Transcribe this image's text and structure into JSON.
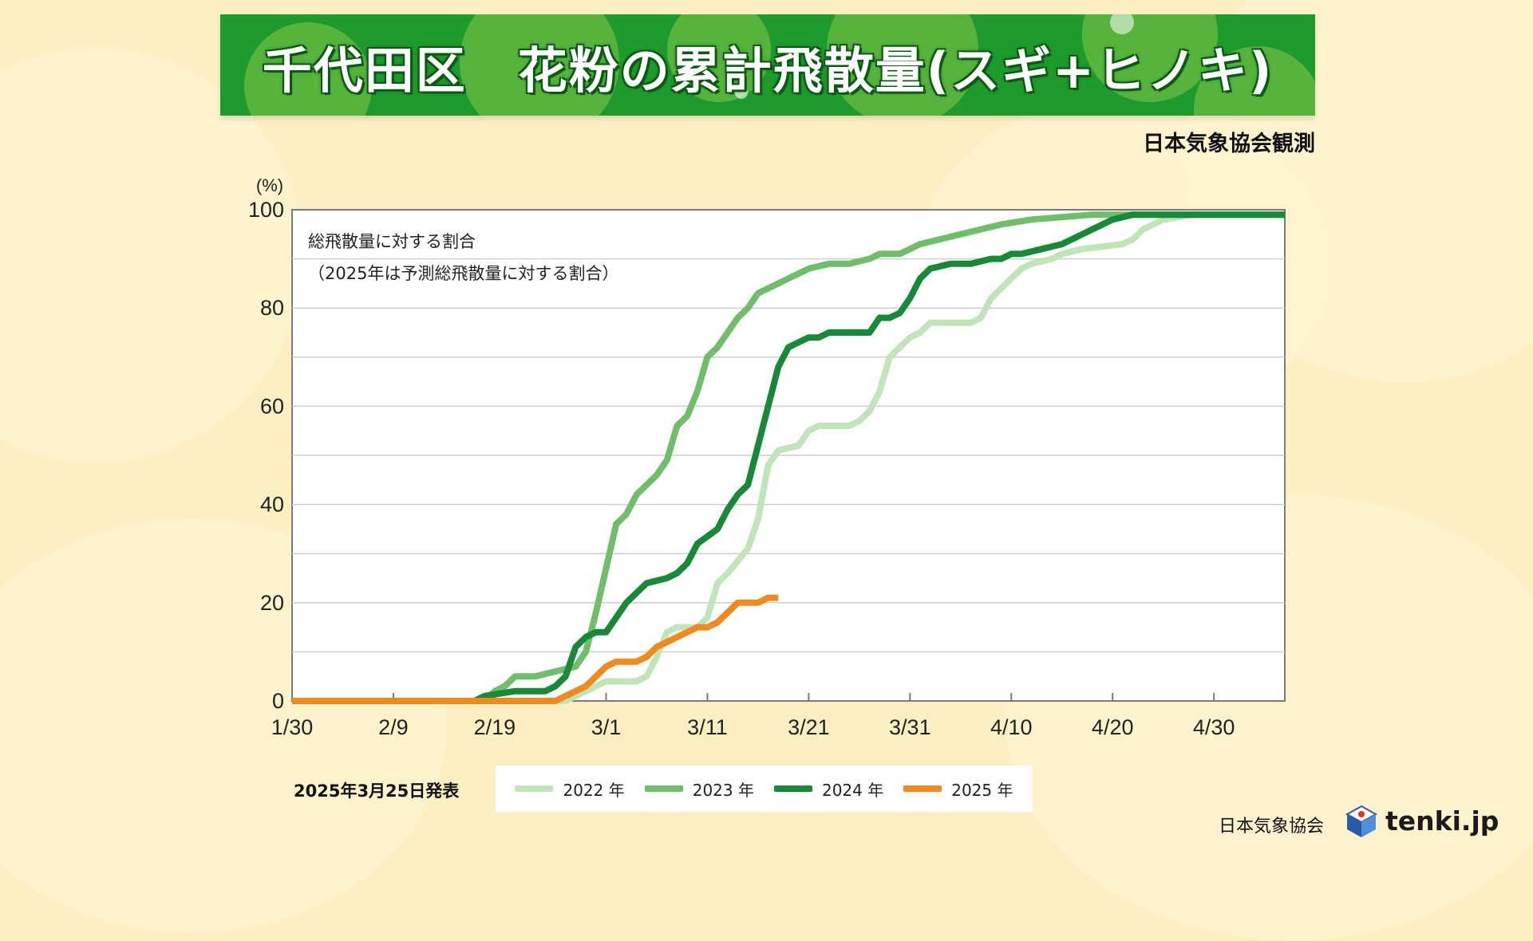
{
  "header": {
    "title": "千代田区　花粉の累計飛散量(スギ+ヒノキ)",
    "observer": "日本気象協会観測"
  },
  "chart_data": {
    "type": "line",
    "note_line1": "総飛散量に対する割合",
    "note_line2": "（2025年は予測総飛散量に対する割合）",
    "yunit": "(%)",
    "ylim": [
      0,
      100
    ],
    "yticks": [
      0,
      20,
      40,
      60,
      80,
      100
    ],
    "xlim": [
      "1/30",
      "5/7"
    ],
    "xticks": [
      "1/30",
      "2/9",
      "2/19",
      "3/1",
      "3/11",
      "3/21",
      "3/31",
      "4/10",
      "4/20",
      "4/30"
    ],
    "grid": true,
    "series": [
      {
        "name": "2022 年",
        "color": "#bfe5b9",
        "points": [
          [
            "1/30",
            0
          ],
          [
            "2/26",
            0
          ],
          [
            "2/28",
            2
          ],
          [
            "3/1",
            4
          ],
          [
            "3/4",
            4
          ],
          [
            "3/5",
            5
          ],
          [
            "3/6",
            9
          ],
          [
            "3/7",
            14
          ],
          [
            "3/8",
            15
          ],
          [
            "3/10",
            15
          ],
          [
            "3/11",
            17
          ],
          [
            "3/12",
            24
          ],
          [
            "3/13",
            26
          ],
          [
            "3/15",
            31
          ],
          [
            "3/16",
            37
          ],
          [
            "3/17",
            48
          ],
          [
            "3/18",
            51
          ],
          [
            "3/20",
            52
          ],
          [
            "3/21",
            55
          ],
          [
            "3/22",
            56
          ],
          [
            "3/25",
            56
          ],
          [
            "3/26",
            57
          ],
          [
            "3/27",
            59
          ],
          [
            "3/28",
            63
          ],
          [
            "3/29",
            70
          ],
          [
            "3/30",
            72
          ],
          [
            "3/31",
            74
          ],
          [
            "4/1",
            75
          ],
          [
            "4/2",
            77
          ],
          [
            "4/6",
            77
          ],
          [
            "4/7",
            78
          ],
          [
            "4/8",
            82
          ],
          [
            "4/9",
            84
          ],
          [
            "4/10",
            86
          ],
          [
            "4/11",
            88
          ],
          [
            "4/12",
            89
          ],
          [
            "4/14",
            90
          ],
          [
            "4/15",
            91
          ],
          [
            "4/17",
            92
          ],
          [
            "4/21",
            93
          ],
          [
            "4/22",
            94
          ],
          [
            "4/23",
            96
          ],
          [
            "4/25",
            98
          ],
          [
            "4/28",
            99
          ],
          [
            "5/7",
            99
          ]
        ]
      },
      {
        "name": "2023 年",
        "color": "#6ebe6a",
        "points": [
          [
            "1/30",
            0
          ],
          [
            "2/18",
            0
          ],
          [
            "2/19",
            2
          ],
          [
            "2/20",
            3
          ],
          [
            "2/21",
            5
          ],
          [
            "2/23",
            5
          ],
          [
            "2/25",
            6
          ],
          [
            "2/27",
            7
          ],
          [
            "2/28",
            10
          ],
          [
            "2/29",
            18
          ],
          [
            "3/1",
            27
          ],
          [
            "3/2",
            36
          ],
          [
            "3/3",
            38
          ],
          [
            "3/4",
            42
          ],
          [
            "3/5",
            44
          ],
          [
            "3/6",
            46
          ],
          [
            "3/7",
            49
          ],
          [
            "3/8",
            56
          ],
          [
            "3/9",
            58
          ],
          [
            "3/10",
            63
          ],
          [
            "3/11",
            70
          ],
          [
            "3/12",
            72
          ],
          [
            "3/13",
            75
          ],
          [
            "3/14",
            78
          ],
          [
            "3/15",
            80
          ],
          [
            "3/16",
            83
          ],
          [
            "3/17",
            84
          ],
          [
            "3/19",
            86
          ],
          [
            "3/20",
            87
          ],
          [
            "3/21",
            88
          ],
          [
            "3/23",
            89
          ],
          [
            "3/25",
            89
          ],
          [
            "3/27",
            90
          ],
          [
            "3/28",
            91
          ],
          [
            "3/30",
            91
          ],
          [
            "3/31",
            92
          ],
          [
            "4/1",
            93
          ],
          [
            "4/3",
            94
          ],
          [
            "4/5",
            95
          ],
          [
            "4/7",
            96
          ],
          [
            "4/9",
            97
          ],
          [
            "4/12",
            98
          ],
          [
            "4/18",
            99
          ],
          [
            "4/22",
            99
          ],
          [
            "5/7",
            99
          ]
        ]
      },
      {
        "name": "2024 年",
        "color": "#178a37",
        "points": [
          [
            "1/30",
            0
          ],
          [
            "2/17",
            0
          ],
          [
            "2/18",
            1
          ],
          [
            "2/21",
            2
          ],
          [
            "2/24",
            2
          ],
          [
            "2/25",
            3
          ],
          [
            "2/26",
            5
          ],
          [
            "2/27",
            11
          ],
          [
            "2/28",
            13
          ],
          [
            "2/29",
            14
          ],
          [
            "3/1",
            14
          ],
          [
            "3/2",
            17
          ],
          [
            "3/3",
            20
          ],
          [
            "3/4",
            22
          ],
          [
            "3/5",
            24
          ],
          [
            "3/7",
            25
          ],
          [
            "3/8",
            26
          ],
          [
            "3/9",
            28
          ],
          [
            "3/10",
            32
          ],
          [
            "3/12",
            35
          ],
          [
            "3/13",
            39
          ],
          [
            "3/14",
            42
          ],
          [
            "3/15",
            44
          ],
          [
            "3/16",
            52
          ],
          [
            "3/17",
            60
          ],
          [
            "3/18",
            68
          ],
          [
            "3/19",
            72
          ],
          [
            "3/20",
            73
          ],
          [
            "3/21",
            74
          ],
          [
            "3/22",
            74
          ],
          [
            "3/23",
            75
          ],
          [
            "3/27",
            75
          ],
          [
            "3/28",
            78
          ],
          [
            "3/29",
            78
          ],
          [
            "3/30",
            79
          ],
          [
            "3/31",
            82
          ],
          [
            "4/1",
            86
          ],
          [
            "4/2",
            88
          ],
          [
            "4/4",
            89
          ],
          [
            "4/6",
            89
          ],
          [
            "4/8",
            90
          ],
          [
            "4/9",
            90
          ],
          [
            "4/10",
            91
          ],
          [
            "4/11",
            91
          ],
          [
            "4/13",
            92
          ],
          [
            "4/15",
            93
          ],
          [
            "4/17",
            95
          ],
          [
            "4/18",
            96
          ],
          [
            "4/19",
            97
          ],
          [
            "4/20",
            98
          ],
          [
            "4/22",
            99
          ],
          [
            "5/7",
            99
          ]
        ]
      },
      {
        "name": "2025 年",
        "color": "#f08a1c",
        "points": [
          [
            "1/30",
            0
          ],
          [
            "2/25",
            0
          ],
          [
            "2/26",
            1
          ],
          [
            "2/27",
            2
          ],
          [
            "2/28",
            3
          ],
          [
            "2/29",
            5
          ],
          [
            "3/1",
            7
          ],
          [
            "3/2",
            8
          ],
          [
            "3/3",
            8
          ],
          [
            "3/4",
            8
          ],
          [
            "3/5",
            9
          ],
          [
            "3/6",
            11
          ],
          [
            "3/7",
            12
          ],
          [
            "3/8",
            13
          ],
          [
            "3/9",
            14
          ],
          [
            "3/10",
            15
          ],
          [
            "3/11",
            15
          ],
          [
            "3/12",
            16
          ],
          [
            "3/13",
            18
          ],
          [
            "3/14",
            20
          ],
          [
            "3/16",
            20
          ],
          [
            "3/17",
            21
          ],
          [
            "3/18",
            21
          ]
        ]
      }
    ]
  },
  "issued": "2025年3月25日発表",
  "footer": {
    "org": "日本気象協会",
    "brand": "tenki.jp",
    "logo_icon": "tenki-cube-icon"
  }
}
